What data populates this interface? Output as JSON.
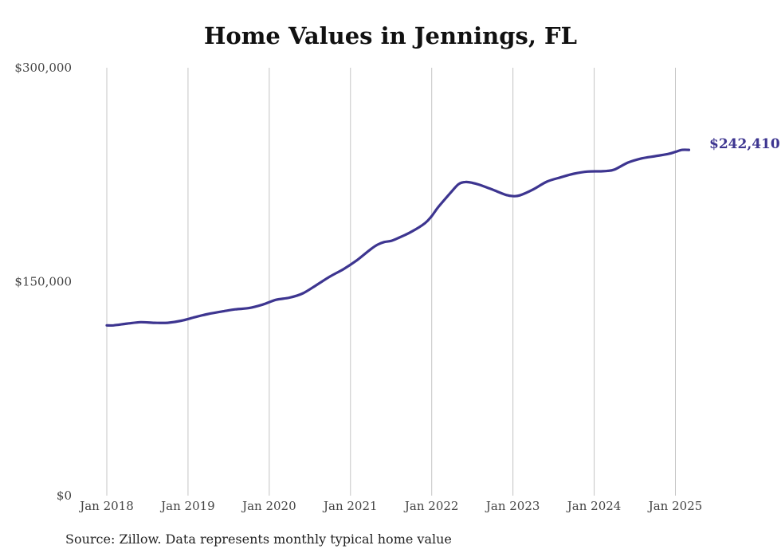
{
  "chart_data": {
    "type": "line",
    "title": "Home Values in Jennings, FL",
    "source": "Source: Zillow. Data represents monthly typical home value",
    "ylim": [
      0,
      300000
    ],
    "yticks": [
      {
        "value": 300000,
        "label": "$300,000"
      },
      {
        "value": 150000,
        "label": "$150,000"
      },
      {
        "value": 0,
        "label": "$0"
      }
    ],
    "xticks": [
      {
        "value": "2018-01",
        "label": "Jan 2018"
      },
      {
        "value": "2019-01",
        "label": "Jan 2019"
      },
      {
        "value": "2020-01",
        "label": "Jan 2020"
      },
      {
        "value": "2021-01",
        "label": "Jan 2021"
      },
      {
        "value": "2022-01",
        "label": "Jan 2022"
      },
      {
        "value": "2023-01",
        "label": "Jan 2023"
      },
      {
        "value": "2024-01",
        "label": "Jan 2024"
      },
      {
        "value": "2025-01",
        "label": "Jan 2025"
      }
    ],
    "xlim": [
      "2018-01",
      "2025-02"
    ],
    "grid": "vertical",
    "line_color": "#3d3590",
    "end_label": "$242,410",
    "series": [
      {
        "x": [
          "2018-01",
          "2018-02",
          "2018-04",
          "2018-06",
          "2018-08",
          "2018-10",
          "2018-12",
          "2019-02",
          "2019-04",
          "2019-06",
          "2019-08",
          "2019-10",
          "2019-12",
          "2020-02",
          "2020-04",
          "2020-06",
          "2020-08",
          "2020-10",
          "2020-12",
          "2021-02",
          "2021-04",
          "2021-05",
          "2021-06",
          "2021-07",
          "2021-08",
          "2021-10",
          "2021-12",
          "2022-01",
          "2022-02",
          "2022-04",
          "2022-05",
          "2022-06",
          "2022-07",
          "2022-08",
          "2022-10",
          "2022-12",
          "2023-01",
          "2023-02",
          "2023-04",
          "2023-06",
          "2023-08",
          "2023-10",
          "2023-12",
          "2024-02",
          "2024-03",
          "2024-04",
          "2024-06",
          "2024-08",
          "2024-10",
          "2024-12",
          "2025-01",
          "2025-02",
          "2025-03"
        ],
        "values": [
          119400,
          119400,
          120600,
          121600,
          121200,
          121200,
          122600,
          125100,
          127400,
          129100,
          130600,
          131500,
          133900,
          137300,
          138800,
          141900,
          147700,
          153700,
          158900,
          165200,
          172800,
          176000,
          177800,
          178600,
          180500,
          185000,
          191000,
          196000,
          202500,
          213500,
          218500,
          219900,
          219300,
          218000,
          214500,
          210800,
          210000,
          210500,
          214700,
          220100,
          223100,
          225700,
          227200,
          227400,
          227700,
          228600,
          233500,
          236400,
          238000,
          239600,
          241000,
          242410,
          242410
        ]
      }
    ]
  }
}
